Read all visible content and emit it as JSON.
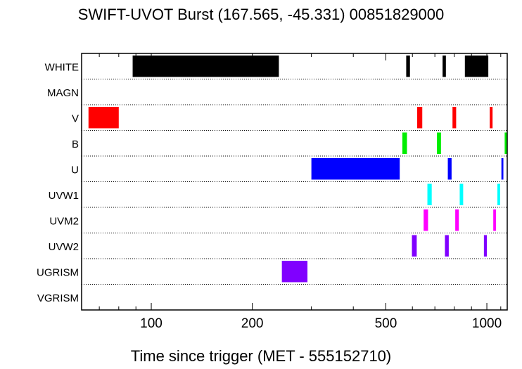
{
  "chart_data": {
    "type": "timeline",
    "title": "SWIFT-UVOT Burst (167.565, -45.331) 00851829000",
    "xlabel": "Time since trigger (MET - 555152710)",
    "ylabel": "",
    "xscale": "log",
    "xlim": [
      62,
      1150
    ],
    "xticks": [
      100,
      200,
      500,
      1000
    ],
    "filters": [
      "WHITE",
      "MAGN",
      "V",
      "B",
      "U",
      "UVW1",
      "UVM2",
      "UVW2",
      "UGRISM",
      "VGRISM"
    ],
    "colors": {
      "WHITE": "#000000",
      "MAGN": "#000000",
      "V": "#ff0000",
      "B": "#00ee00",
      "U": "#0000ff",
      "UVW1": "#00ffff",
      "UVM2": "#ff00ff",
      "UVW2": "#8000ff",
      "UGRISM": "#8000ff",
      "VGRISM": "#8000ff"
    },
    "exposures": {
      "WHITE": [
        [
          88,
          240
        ],
        [
          575,
          590
        ],
        [
          738,
          755
        ],
        [
          860,
          1010
        ]
      ],
      "MAGN": [],
      "V": [
        [
          65,
          80
        ],
        [
          620,
          642
        ],
        [
          790,
          810
        ],
        [
          1020,
          1040
        ]
      ],
      "B": [
        [
          560,
          578
        ],
        [
          710,
          730
        ],
        [
          1130,
          1148
        ]
      ],
      "U": [
        [
          300,
          550
        ],
        [
          765,
          785
        ],
        [
          1105,
          1120
        ]
      ],
      "UVW1": [
        [
          665,
          685
        ],
        [
          830,
          850
        ],
        [
          1075,
          1095
        ]
      ],
      "UVM2": [
        [
          648,
          668
        ],
        [
          805,
          825
        ],
        [
          1045,
          1065
        ]
      ],
      "UVW2": [
        [
          598,
          618
        ],
        [
          750,
          770
        ],
        [
          980,
          1000
        ]
      ],
      "UGRISM": [
        [
          245,
          292
        ]
      ],
      "VGRISM": []
    }
  }
}
